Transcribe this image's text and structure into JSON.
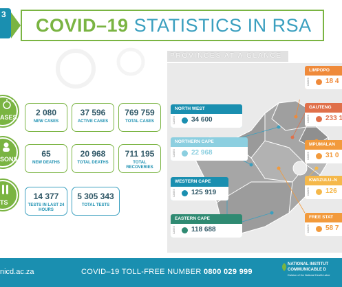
{
  "header": {
    "date_digit": "3",
    "title_bold": "COVID–19",
    "title_light": "STATISTICS IN RSA"
  },
  "sections": [
    {
      "label": "ASES",
      "icon": "virus-icon"
    },
    {
      "label": "SONS",
      "icon": "people-icon"
    },
    {
      "label": "TS",
      "icon": "test-tube-icon"
    }
  ],
  "stats": {
    "new_cases": {
      "value": "2 080",
      "label": "NEW CASES"
    },
    "active_cases": {
      "value": "37 596",
      "label": "ACTIVE CASES"
    },
    "total_cases": {
      "value": "769 759",
      "label": "TOTAL CASES"
    },
    "new_deaths": {
      "value": "65",
      "label": "NEW DEATHS"
    },
    "total_deaths": {
      "value": "20 968",
      "label": "TOTAL DEATHS"
    },
    "total_recoveries": {
      "value": "711 195",
      "label": "TOTAL RECOVERIES"
    },
    "tests_24h": {
      "value": "14 377",
      "label": "TESTS IN LAST 24 HOURS"
    },
    "total_tests": {
      "value": "5 305 343",
      "label": "TOTAL TESTS"
    }
  },
  "map": {
    "heading": "PROVINCES AT A GLANCE",
    "cases_word": "CASES"
  },
  "provinces": {
    "north_west": {
      "name": "NORTH WEST",
      "value": "34 600",
      "color": "#1a8fb0"
    },
    "northern_cape": {
      "name": "NORTHERN CAPE",
      "value": "22 968",
      "color": "#8ccfe0"
    },
    "western_cape": {
      "name": "WESTERN CAPE",
      "value": "125 919",
      "color": "#1a8fb0"
    },
    "eastern_cape": {
      "name": "EASTERN CAPE",
      "value": "118 688",
      "color": "#2f8a72"
    },
    "limpopo": {
      "name": "LIMPOPO",
      "value": "18 4",
      "color": "#ef8a3a"
    },
    "gauteng": {
      "name": "GAUTENG",
      "value": "233 1",
      "color": "#e0704a"
    },
    "mpumalanga": {
      "name": "MPUMALAN",
      "value": "31 0",
      "color": "#f29a3c"
    },
    "kwazulu_natal": {
      "name": "KWAZULU–N",
      "value": "126",
      "color": "#f5b84a"
    },
    "free_state": {
      "name": "FREE STAT",
      "value": "58 7",
      "color": "#f29a3c"
    }
  },
  "footer": {
    "site": "nicd.ac.za",
    "toll_text": "COVID–19 TOLL-FREE NUMBER",
    "toll_number": "0800 029 999",
    "institute_line1": "NATIONAL INSTITUT",
    "institute_line2": "COMMUNICABLE D",
    "institute_small": "Division of the National Health Labor"
  }
}
